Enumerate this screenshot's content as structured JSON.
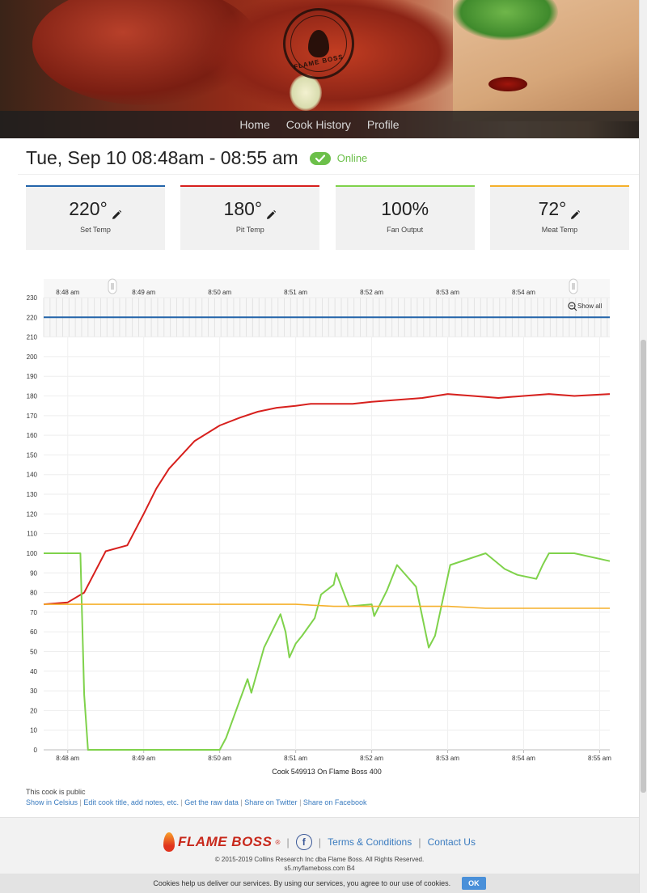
{
  "nav": {
    "items": [
      {
        "label": "Home"
      },
      {
        "label": "Cook History"
      },
      {
        "label": "Profile"
      }
    ]
  },
  "header": {
    "title": "Tue, Sep 10 08:48am - 08:55 am",
    "status_label": "Online",
    "status_color": "#6cc04a"
  },
  "cards": [
    {
      "value": "220°",
      "caption": "Set Temp",
      "accent": "#2364aa",
      "editable": true
    },
    {
      "value": "180°",
      "caption": "Pit Temp",
      "accent": "#d7201d",
      "editable": true
    },
    {
      "value": "100%",
      "caption": "Fan Output",
      "accent": "#7fd24b",
      "editable": false
    },
    {
      "value": "72°",
      "caption": "Meat Temp",
      "accent": "#f5b02b",
      "editable": true
    }
  ],
  "chart": {
    "show_all_label": "Show all"
  },
  "chart_data": {
    "type": "line",
    "xlabel": "Cook 549913 On Flame Boss 400",
    "ylim": [
      0,
      230
    ],
    "yticks": [
      0,
      10,
      20,
      30,
      40,
      50,
      60,
      70,
      80,
      90,
      100,
      110,
      120,
      130,
      140,
      150,
      160,
      170,
      180,
      190,
      200,
      210,
      220,
      230
    ],
    "xlim": [
      "8:47:41",
      "8:55:08"
    ],
    "xticks": [
      "8:48 am",
      "8:49 am",
      "8:50 am",
      "8:51 am",
      "8:52 am",
      "8:53 am",
      "8:54 am",
      "8:55 am"
    ],
    "navigator_ticks": [
      "8:48 am",
      "8:49 am",
      "8:50 am",
      "8:51 am",
      "8:52 am",
      "8:53 am",
      "8:54 am"
    ],
    "grid": true,
    "series": [
      {
        "color": "#2364aa",
        "x": [
          "8:47:41",
          "8:55:08"
        ],
        "y": [
          220,
          220
        ]
      },
      {
        "color": "#d7201d",
        "x": [
          "8:47:41",
          "8:48:00",
          "8:48:13",
          "8:48:30",
          "8:48:47",
          "8:49:00",
          "8:49:10",
          "8:49:20",
          "8:49:30",
          "8:49:40",
          "8:50:00",
          "8:50:16",
          "8:50:30",
          "8:50:45",
          "8:51:00",
          "8:51:12",
          "8:51:30",
          "8:51:45",
          "8:52:00",
          "8:52:20",
          "8:52:40",
          "8:53:00",
          "8:53:20",
          "8:53:40",
          "8:54:00",
          "8:54:20",
          "8:54:40",
          "8:55:08"
        ],
        "y": [
          74,
          75,
          80,
          101,
          104,
          120,
          133,
          143,
          150,
          157,
          165,
          169,
          172,
          174,
          175,
          176,
          176,
          176,
          177,
          178,
          179,
          181,
          180,
          179,
          180,
          181,
          180,
          181
        ]
      },
      {
        "color": "#7fd24b",
        "x": [
          "8:47:41",
          "8:48:10",
          "8:48:13",
          "8:48:16",
          "8:48:30",
          "8:49:00",
          "8:49:30",
          "8:50:00",
          "8:50:05",
          "8:50:22",
          "8:50:25",
          "8:50:35",
          "8:50:48",
          "8:50:52",
          "8:50:55",
          "8:51:00",
          "8:51:05",
          "8:51:15",
          "8:51:20",
          "8:51:30",
          "8:51:32",
          "8:51:42",
          "8:52:00",
          "8:52:02",
          "8:52:12",
          "8:52:20",
          "8:52:35",
          "8:52:45",
          "8:52:50",
          "8:53:02",
          "8:53:30",
          "8:53:45",
          "8:53:55",
          "8:54:10",
          "8:54:15",
          "8:54:20",
          "8:54:40",
          "8:55:08"
        ],
        "y": [
          100,
          100,
          28,
          0,
          0,
          0,
          0,
          0,
          6,
          36,
          29,
          52,
          69,
          60,
          47,
          54,
          58,
          67,
          79,
          84,
          90,
          73,
          74,
          68,
          81,
          94,
          83,
          52,
          58,
          94,
          100,
          92,
          89,
          87,
          94,
          100,
          100,
          96
        ]
      },
      {
        "color": "#f5b02b",
        "x": [
          "8:47:41",
          "8:48:30",
          "8:49:30",
          "8:50:30",
          "8:51:00",
          "8:51:30",
          "8:52:30",
          "8:53:00",
          "8:53:30",
          "8:54:30",
          "8:55:08"
        ],
        "y": [
          74,
          74,
          74,
          74,
          74,
          73,
          73,
          73,
          72,
          72,
          72
        ]
      }
    ]
  },
  "footer": {
    "public_note": "This cook is public",
    "links": [
      {
        "label": "Show in Celsius"
      },
      {
        "label": "Edit cook title, add notes, etc."
      },
      {
        "label": "Get the raw data"
      },
      {
        "label": "Share on Twitter"
      },
      {
        "label": "Share on Facebook"
      }
    ],
    "brand": "FLAME BOSS",
    "brand_mark": "®",
    "facebook_glyph": "f",
    "terms_label": "Terms & Conditions",
    "contact_label": "Contact Us",
    "copyright": "© 2015-2019 Collins Research Inc dba Flame Boss. All Rights Reserved.",
    "server": "s5.myflameboss.com B4",
    "cookie_text": "Cookies help us deliver our services. By using our services, you agree to our use of cookies.",
    "cookie_ok": "OK"
  }
}
